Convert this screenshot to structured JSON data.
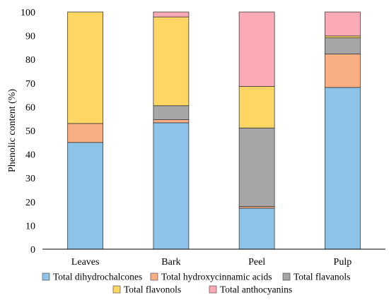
{
  "chart_data": {
    "type": "bar",
    "stacked": true,
    "categories": [
      "Leaves",
      "Bark",
      "Peel",
      "Pulp"
    ],
    "ylabel": "Phenolic content (%)",
    "ylim": [
      0,
      100
    ],
    "yticks": [
      0,
      10,
      20,
      30,
      40,
      50,
      60,
      70,
      80,
      90,
      100
    ],
    "grid": false,
    "legend_position": "bottom",
    "series": [
      {
        "name": "Total dihydrochalcones",
        "color": "#8DC3E8",
        "values": [
          45,
          53.3,
          17.3,
          68.2
        ]
      },
      {
        "name": "Total hydroxycinnamic acids",
        "color": "#F9AE83",
        "values": [
          8,
          1.3,
          0.7,
          14.1
        ]
      },
      {
        "name": "Total flavanols",
        "color": "#A6A6A6",
        "values": [
          0,
          5.9,
          33.1,
          6.8
        ]
      },
      {
        "name": "Total flavonols",
        "color": "#FDD663",
        "values": [
          47,
          37.4,
          17.5,
          0.8
        ]
      },
      {
        "name": "Total anthocyanins",
        "color": "#FBAAB6",
        "values": [
          0,
          2.1,
          31.4,
          10.1
        ]
      }
    ]
  }
}
